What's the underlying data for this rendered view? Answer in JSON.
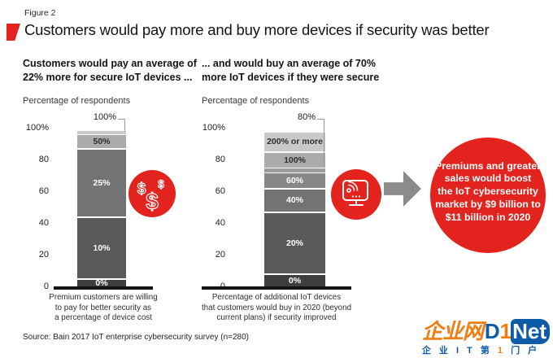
{
  "header": {
    "figure_label": "Figure 2",
    "title": "Customers would pay more and buy more devices if security was better"
  },
  "chart_data": [
    {
      "type": "bar",
      "stacked": true,
      "subtitle": "Customers would pay an average of\n22% more for secure IoT devices ...",
      "ylabel": "Percentage of respondents",
      "ylim": [
        0,
        100
      ],
      "yticks": [
        "100%",
        "80",
        "60",
        "40",
        "20",
        "0"
      ],
      "grid": false,
      "segments": [
        {
          "label": "0%",
          "value": 5,
          "color": "#3e3e41",
          "text_color": "#ffffff"
        },
        {
          "label": "10%",
          "value": 39,
          "color": "#59595c",
          "text_color": "#ffffff"
        },
        {
          "label": "25%",
          "value": 43,
          "color": "#737376",
          "text_color": "#ffffff"
        },
        {
          "label": "50%",
          "value": 9,
          "color": "#ababad",
          "text_color": "#2d2d2f"
        },
        {
          "label": "100%",
          "value": 2,
          "color": "#c9c9cb",
          "callout": true
        }
      ],
      "caption": "Premium customers are willing\nto pay for better security as\na percentage of device cost",
      "icon": "dollar-signs-icon"
    },
    {
      "type": "bar",
      "stacked": true,
      "subtitle": "... and would buy an average of 70%\nmore IoT devices if they were secure",
      "ylabel": "Percentage of respondents",
      "ylim": [
        0,
        100
      ],
      "yticks": [
        "100%",
        "80",
        "60",
        "40",
        "20",
        "0"
      ],
      "grid": false,
      "segments": [
        {
          "label": "0%",
          "value": 8,
          "color": "#3e3e41",
          "text_color": "#ffffff"
        },
        {
          "label": "20%",
          "value": 39,
          "color": "#59595c",
          "text_color": "#ffffff"
        },
        {
          "label": "40%",
          "value": 15,
          "color": "#737376",
          "text_color": "#ffffff"
        },
        {
          "label": "60%",
          "value": 10,
          "color": "#87878a",
          "text_color": "#ffffff"
        },
        {
          "label": "80%",
          "value": 3,
          "color": "#9c9c9e",
          "callout": true
        },
        {
          "label": "100%",
          "value": 10,
          "color": "#ababad",
          "text_color": "#2d2d2f"
        },
        {
          "label": "200% or more",
          "value": 12,
          "color": "#c9c9cb",
          "text_color": "#2d2d2f"
        }
      ],
      "caption": "Percentage of additional IoT devices\nthat customers would buy in 2020 (beyond\ncurrent plans) if security improved",
      "icon": "iot-device-icon"
    }
  ],
  "conclusion": {
    "text": "Premiums and greater\nsales would boost\nthe IoT cybersecurity\nmarket by $9 billion to\n$11 billion in 2020"
  },
  "source": "Source: Bain 2017 IoT enterprise cybersecurity survey (n=280)",
  "watermark": {
    "logo_cn": "企业网",
    "logo_d": "D",
    "logo_1": "1",
    "logo_net": "Net",
    "tagline_a": "企 业 I T 第 ",
    "tagline_b": "1",
    "tagline_c": " 门 户"
  },
  "colors": {
    "red": "#e2231e",
    "arrow_gray": "#8b8b8e",
    "logo_orange": "#f07c12",
    "logo_blue": "#0e5ca8"
  }
}
